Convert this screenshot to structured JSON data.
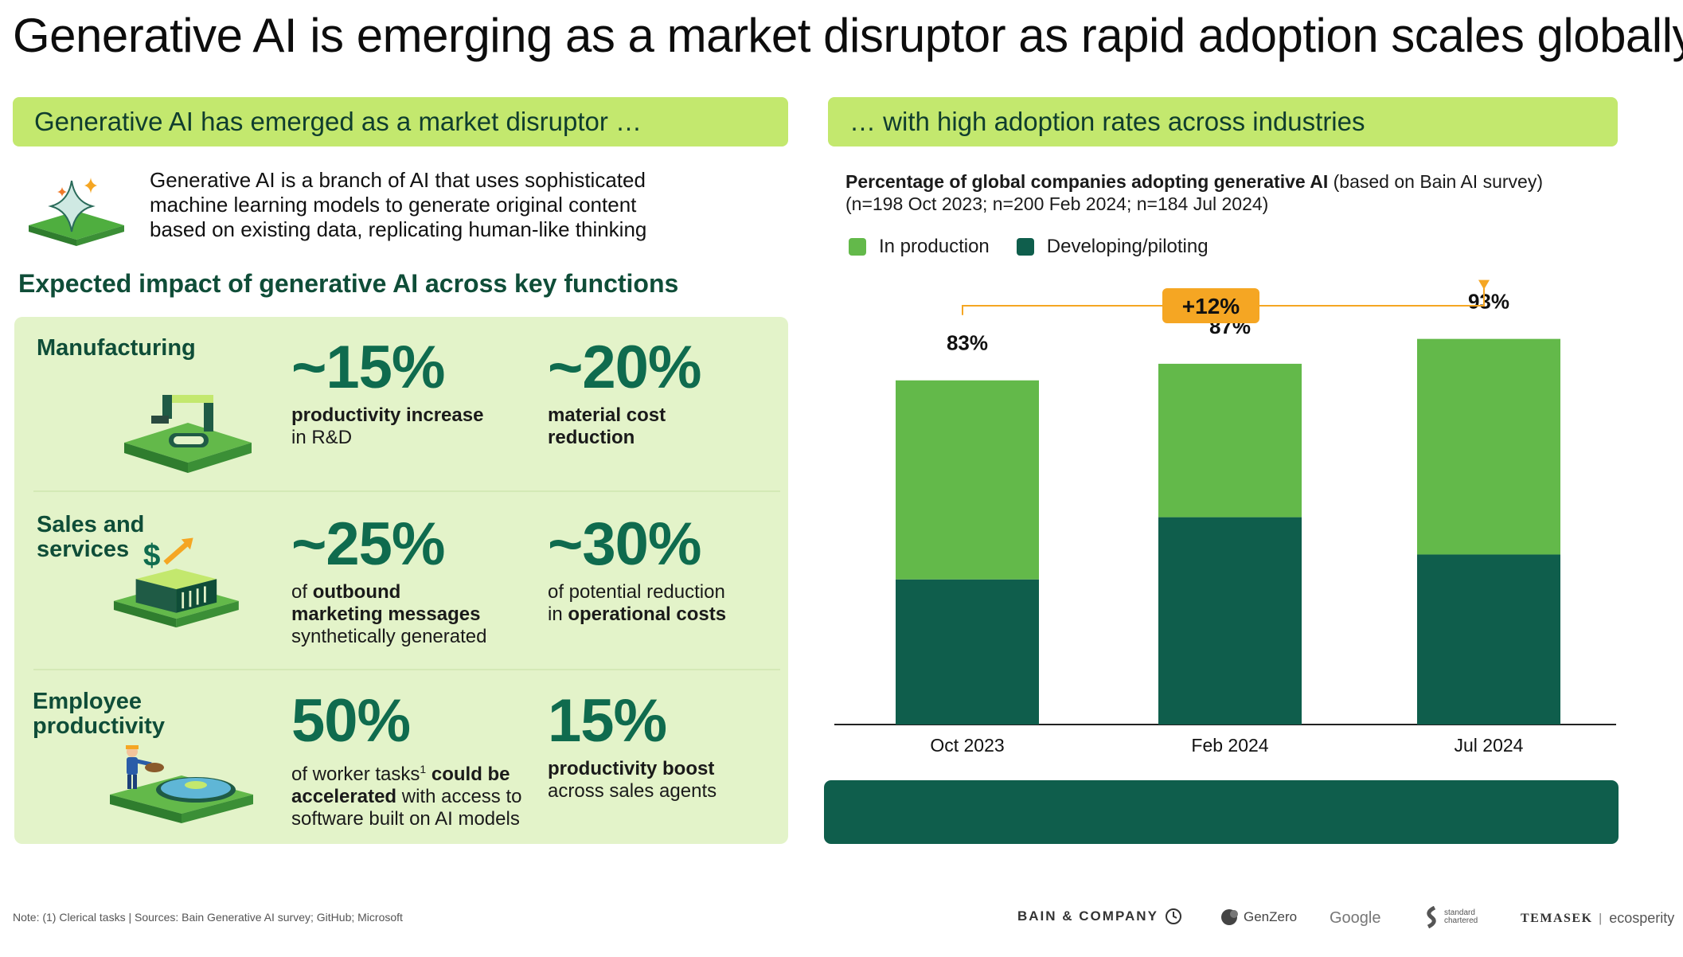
{
  "title": "Generative AI is emerging as a market disruptor as rapid adoption scales globally",
  "left_banner": "Generative AI has emerged as a market disruptor …",
  "right_banner": "… with high adoption rates across industries",
  "intro": {
    "line1": "Generative AI is a branch of AI that uses sophisticated",
    "line2": "machine learning models to generate original content",
    "line3": "based on existing data, replicating human-like thinking"
  },
  "impact_title": "Expected impact of generative AI across key functions",
  "functions": [
    {
      "name_line1": "Manufacturing",
      "name_line2": "",
      "stat1": {
        "value": "~15%",
        "desc_bold": "productivity increase",
        "desc_rest": "in R&D"
      },
      "stat2": {
        "value": "~20%",
        "desc_line1": "material cost",
        "desc_line2": "reduction"
      }
    },
    {
      "name_line1": "Sales and",
      "name_line2": "services",
      "stat1": {
        "value": "~25%",
        "desc_pre": "of ",
        "desc_bold1": "outbound",
        "desc_bold2": "marketing messages",
        "desc_rest": "synthetically generated"
      },
      "stat2": {
        "value": "~30%",
        "desc_line1": "of potential reduction",
        "desc_pre2": "in ",
        "desc_bold": "operational costs"
      }
    },
    {
      "name_line1": "Employee",
      "name_line2": "productivity",
      "stat1": {
        "value": "50%",
        "desc_pre": "of worker tasks",
        "desc_sup": "1",
        "desc_bold1": " could be",
        "desc_bold2": "accelerated",
        "desc_mid": " with access to",
        "desc_rest": "software built on AI models"
      },
      "stat2": {
        "value": "15%",
        "desc_bold": "productivity boost",
        "desc_rest": "across sales agents"
      }
    }
  ],
  "chart_subtitle_bold": "Percentage of global companies adopting generative AI",
  "chart_subtitle_rest": " (based on Bain AI survey)",
  "chart_subtitle_line2": "(n=198 Oct 2023; n=200 Feb 2024; n=184 Jul 2024)",
  "chart_data": {
    "type": "bar",
    "stacked": true,
    "categories": [
      "Oct 2023",
      "Feb 2024",
      "Jul 2024"
    ],
    "series": [
      {
        "name": "Developing/piloting",
        "values": [
          35,
          50,
          41
        ],
        "color": "#0f5e4c"
      },
      {
        "name": "In production",
        "values": [
          48,
          37,
          52
        ],
        "color": "#63b94a"
      }
    ],
    "totals": [
      83,
      87,
      93
    ],
    "total_labels": [
      "83%",
      "87%",
      "93%"
    ],
    "annotation": "+12%",
    "legend": [
      "In production",
      "Developing/piloting"
    ],
    "ylim": [
      0,
      100
    ]
  },
  "colors": {
    "banner": "#c3e86e",
    "panel": "#e3f3c9",
    "dark_green": "#0f5e4c",
    "light_green": "#63b94a",
    "accent_orange": "#f5a623"
  },
  "note": "Note: (1) Clerical tasks | Sources: Bain Generative AI survey; GitHub; Microsoft",
  "logos": {
    "bain": "BAIN & COMPANY",
    "genzero": "GenZero",
    "google": "Google",
    "sc_line1": "standard",
    "sc_line2": "chartered",
    "temasek": "TEMASEK",
    "ecosperity": "ecosperity"
  }
}
